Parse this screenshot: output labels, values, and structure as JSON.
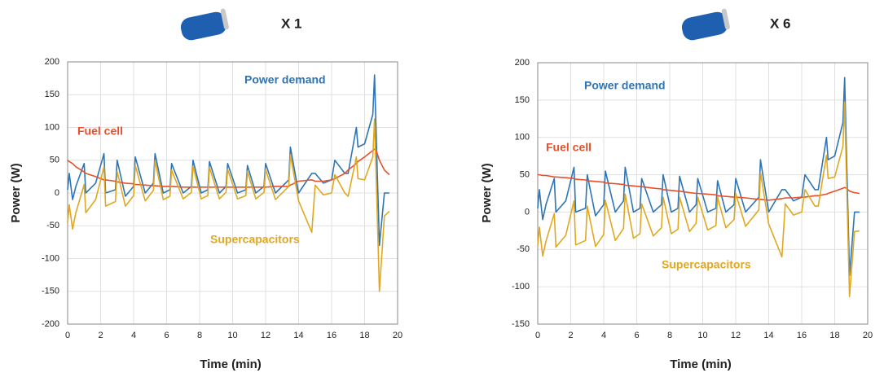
{
  "chart_data": [
    {
      "type": "line",
      "title": "X 1",
      "xlabel": "Time (min)",
      "ylabel": "Power (W)",
      "xlim": [
        0,
        20
      ],
      "xticks": [
        0,
        2,
        4,
        6,
        8,
        10,
        12,
        14,
        16,
        18,
        20
      ],
      "ylim": [
        -200,
        200
      ],
      "yticks": [
        -200,
        -150,
        -100,
        -50,
        0,
        50,
        100,
        150,
        200
      ],
      "grid": true,
      "x": [
        0,
        0.1,
        0.3,
        0.5,
        1.0,
        1.1,
        1.7,
        2.2,
        2.3,
        2.9,
        3.0,
        3.5,
        4.0,
        4.1,
        4.7,
        5.2,
        5.3,
        5.8,
        6.2,
        6.3,
        7.0,
        7.5,
        7.6,
        8.1,
        8.5,
        8.6,
        9.2,
        9.6,
        9.7,
        10.3,
        10.8,
        10.9,
        11.4,
        11.9,
        12.0,
        12.6,
        13.4,
        13.5,
        14.0,
        14.8,
        15.0,
        15.5,
        16.0,
        16.2,
        16.8,
        17.0,
        17.5,
        17.6,
        18.0,
        18.5,
        18.6,
        18.7,
        18.9,
        19.2,
        19.5
      ],
      "series": [
        {
          "name": "Power demand",
          "color": "#2e75b6",
          "values": [
            5,
            30,
            -10,
            10,
            45,
            0,
            15,
            60,
            0,
            5,
            50,
            -5,
            10,
            55,
            0,
            15,
            60,
            0,
            5,
            45,
            0,
            10,
            50,
            0,
            5,
            48,
            0,
            10,
            45,
            0,
            5,
            42,
            0,
            10,
            45,
            0,
            20,
            70,
            0,
            30,
            30,
            15,
            20,
            50,
            30,
            30,
            100,
            70,
            75,
            120,
            180,
            90,
            -80,
            0,
            0
          ]
        },
        {
          "name": "Fuel cell",
          "color": "#e8502a",
          "values": [
            50,
            48,
            45,
            40,
            32,
            30,
            25,
            20,
            20,
            18,
            17,
            15,
            14,
            13,
            12,
            11,
            11,
            10,
            10,
            10,
            9,
            9,
            9,
            9,
            9,
            9,
            9,
            9,
            9,
            9,
            9,
            9,
            9,
            9,
            9,
            10,
            10,
            12,
            18,
            20,
            18,
            18,
            20,
            22,
            30,
            35,
            45,
            48,
            55,
            65,
            67,
            65,
            50,
            35,
            28
          ]
        },
        {
          "name": "Supercapacitors",
          "color": "#e0a820",
          "values": [
            -45,
            -18,
            -55,
            -30,
            13,
            -30,
            -10,
            40,
            -20,
            -13,
            33,
            -20,
            -4,
            42,
            -12,
            4,
            49,
            -10,
            -5,
            35,
            -9,
            1,
            41,
            -9,
            -4,
            39,
            -9,
            1,
            36,
            -9,
            -4,
            33,
            -9,
            1,
            36,
            -10,
            10,
            58,
            -12,
            -60,
            12,
            -3,
            0,
            28,
            0,
            -5,
            55,
            22,
            20,
            55,
            113,
            25,
            -150,
            -35,
            -28
          ]
        }
      ]
    },
    {
      "type": "line",
      "title": "X 6",
      "xlabel": "Time (min)",
      "ylabel": "Power (W)",
      "xlim": [
        0,
        20
      ],
      "xticks": [
        0,
        2,
        4,
        6,
        8,
        10,
        12,
        14,
        16,
        18,
        20
      ],
      "ylim": [
        -150,
        200
      ],
      "yticks": [
        -150,
        -100,
        -50,
        0,
        50,
        100,
        150,
        200
      ],
      "grid": true,
      "x": [
        0,
        0.1,
        0.3,
        0.5,
        1.0,
        1.1,
        1.7,
        2.2,
        2.3,
        2.9,
        3.0,
        3.5,
        4.0,
        4.1,
        4.7,
        5.2,
        5.3,
        5.8,
        6.2,
        6.3,
        7.0,
        7.5,
        7.6,
        8.1,
        8.5,
        8.6,
        9.2,
        9.6,
        9.7,
        10.3,
        10.8,
        10.9,
        11.4,
        11.9,
        12.0,
        12.6,
        13.4,
        13.5,
        14.0,
        14.8,
        15.0,
        15.5,
        16.0,
        16.2,
        16.8,
        17.0,
        17.5,
        17.6,
        18.0,
        18.5,
        18.6,
        18.7,
        18.9,
        19.2,
        19.5
      ],
      "series": [
        {
          "name": "Power demand",
          "color": "#2e75b6",
          "values": [
            5,
            30,
            -10,
            10,
            45,
            0,
            15,
            60,
            0,
            5,
            50,
            -5,
            10,
            55,
            0,
            15,
            60,
            0,
            5,
            45,
            0,
            10,
            50,
            0,
            5,
            48,
            0,
            10,
            45,
            0,
            5,
            42,
            0,
            10,
            45,
            0,
            20,
            70,
            0,
            30,
            30,
            15,
            20,
            50,
            30,
            30,
            100,
            70,
            75,
            120,
            180,
            90,
            -85,
            0,
            0
          ]
        },
        {
          "name": "Fuel cell",
          "color": "#e8502a",
          "values": [
            50,
            50,
            49,
            49,
            47,
            47,
            46,
            45,
            44,
            43,
            42,
            41,
            40,
            39,
            38,
            37,
            36,
            35,
            34,
            34,
            32,
            31,
            30,
            29,
            28,
            28,
            26,
            25,
            25,
            24,
            23,
            22,
            21,
            20,
            20,
            19,
            17,
            17,
            16,
            18,
            19,
            19,
            20,
            20,
            22,
            22,
            24,
            25,
            28,
            32,
            33,
            32,
            28,
            26,
            25
          ]
        },
        {
          "name": "Supercapacitors",
          "color": "#e0a820",
          "values": [
            -45,
            -20,
            -59,
            -39,
            -2,
            -47,
            -31,
            15,
            -44,
            -38,
            8,
            -46,
            -30,
            16,
            -38,
            -22,
            24,
            -35,
            -29,
            11,
            -32,
            -21,
            20,
            -29,
            -23,
            20,
            -26,
            -15,
            20,
            -24,
            -18,
            20,
            -21,
            -10,
            25,
            -19,
            3,
            53,
            -16,
            -60,
            11,
            -4,
            0,
            30,
            8,
            8,
            76,
            45,
            47,
            88,
            147,
            58,
            -113,
            -26,
            -25
          ]
        }
      ]
    }
  ]
}
